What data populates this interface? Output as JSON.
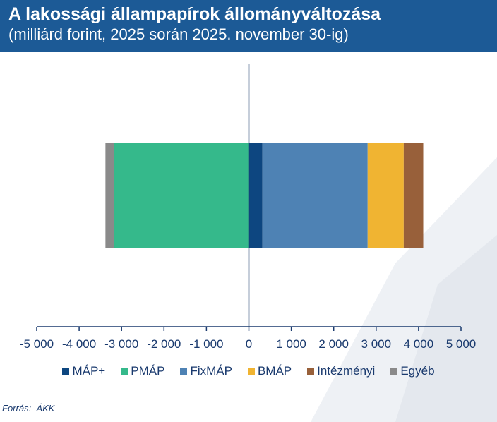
{
  "header": {
    "title": "A lakossági állampapírok állományváltozása",
    "subtitle": "(milliárd forint, 2025 során 2025. november 30-ig)"
  },
  "source": "Forrás:  ÁKK",
  "chart_data": {
    "type": "bar",
    "orientation": "horizontal",
    "stacked": true,
    "categories": [
      ""
    ],
    "series": [
      {
        "name": "MÁP+",
        "values": [
          320
        ],
        "color": "#0d4680"
      },
      {
        "name": "PMÁP",
        "values": [
          -3170
        ],
        "color": "#35b98b"
      },
      {
        "name": "FixMÁP",
        "values": [
          2480
        ],
        "color": "#4e82b4"
      },
      {
        "name": "BMÁP",
        "values": [
          850
        ],
        "color": "#f0b432"
      },
      {
        "name": "Intézményi",
        "values": [
          460
        ],
        "color": "#98603a"
      },
      {
        "name": "Egyéb",
        "values": [
          -210
        ],
        "color": "#8a8a8a"
      }
    ],
    "xlim": [
      -5000,
      5000
    ],
    "xticks": [
      -5000,
      -4000,
      -3000,
      -2000,
      -1000,
      0,
      1000,
      2000,
      3000,
      4000,
      5000
    ],
    "xtick_labels": [
      "-5 000",
      "-4 000",
      "-3 000",
      "-2 000",
      "-1 000",
      "0",
      "1 000",
      "2 000",
      "3 000",
      "4 000",
      "5 000"
    ],
    "grid": false,
    "legend_position": "bottom"
  }
}
